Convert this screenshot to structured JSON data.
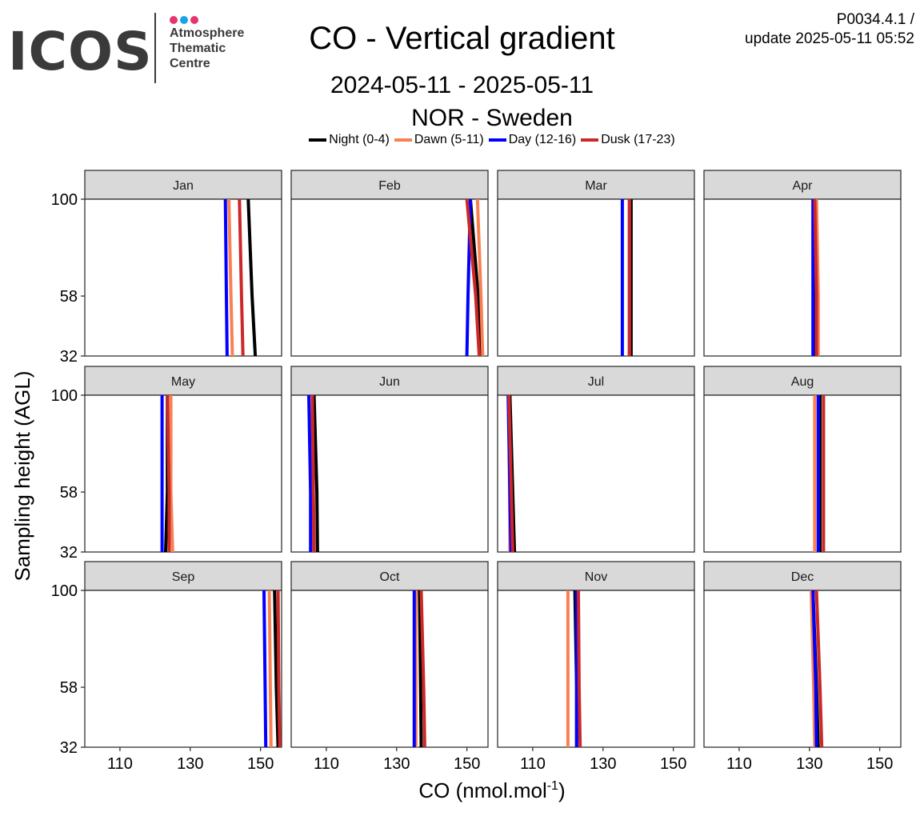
{
  "logo": {
    "wordmark": "ICOS",
    "lines": [
      "Atmosphere",
      "Thematic",
      "Centre"
    ],
    "dot_colors": [
      "#e8336d",
      "#1aa3e8",
      "#e8336d"
    ]
  },
  "header": {
    "title": "CO - Vertical gradient",
    "period": "2024-05-11 - 2025-05-11",
    "station": "NOR - Sweden",
    "version_line1": "P0034.4.1 /",
    "version_line2": "update  2025-05-11 05:52"
  },
  "legend": [
    {
      "label": "Night (0-4)",
      "color": "#000000"
    },
    {
      "label": "Dawn (5-11)",
      "color": "#f98053"
    },
    {
      "label": "Day (12-16)",
      "color": "#0000ff"
    },
    {
      "label": "Dusk (17-23)",
      "color": "#cc2828"
    }
  ],
  "chart_data": {
    "type": "line",
    "title": "CO - Vertical gradient",
    "xlabel": "CO (nmol.mol",
    "xlabel_sup": "-1",
    "xlabel_end": ")",
    "ylabel": "Sampling height (AGL)",
    "xlim": [
      100,
      156
    ],
    "ylim": [
      32,
      100
    ],
    "x_ticks": [
      110,
      130,
      150
    ],
    "y_ticks": [
      32,
      58,
      100
    ],
    "heights": [
      32,
      58,
      100
    ],
    "series_names": [
      "Night (0-4)",
      "Dawn (5-11)",
      "Day (12-16)",
      "Dusk (17-23)"
    ],
    "series_colors": [
      "#000000",
      "#f98053",
      "#0000ff",
      "#cc2828"
    ],
    "panels": [
      {
        "month": "Jan",
        "series": [
          [
            148.5,
            147.6,
            146.5
          ],
          [
            142.0,
            141.6,
            141.0
          ],
          [
            140.5,
            140.3,
            140.0
          ],
          [
            145.0,
            144.6,
            144.0
          ]
        ]
      },
      {
        "month": "Feb",
        "series": [
          [
            154.0,
            153.2,
            151.0
          ],
          [
            154.5,
            154.0,
            153.0
          ],
          [
            150.0,
            150.3,
            151.0
          ],
          [
            153.5,
            152.5,
            150.0
          ]
        ]
      },
      {
        "month": "Mar",
        "series": [
          [
            138.0,
            138.0,
            138.0
          ],
          [
            137.5,
            137.5,
            137.5
          ],
          [
            135.5,
            135.5,
            135.5
          ],
          [
            137.5,
            137.5,
            137.5
          ]
        ]
      },
      {
        "month": "Apr",
        "series": [
          [
            131.5,
            131.5,
            131.5
          ],
          [
            132.5,
            132.5,
            132.0
          ],
          [
            131.0,
            131.0,
            131.0
          ],
          [
            132.0,
            132.0,
            131.5
          ]
        ]
      },
      {
        "month": "May",
        "series": [
          [
            123.0,
            123.5,
            123.5
          ],
          [
            125.0,
            124.5,
            124.5
          ],
          [
            122.0,
            122.0,
            122.0
          ],
          [
            124.0,
            124.0,
            123.5
          ]
        ]
      },
      {
        "month": "Jun",
        "series": [
          [
            107.5,
            107.3,
            106.5
          ],
          [
            106.0,
            106.0,
            106.0
          ],
          [
            105.5,
            105.5,
            105.0
          ],
          [
            106.5,
            106.3,
            106.0
          ]
        ]
      },
      {
        "month": "Jul",
        "series": [
          [
            104.8,
            104.3,
            103.5
          ],
          [
            103.5,
            103.4,
            103.2
          ],
          [
            103.8,
            103.5,
            103.0
          ],
          [
            104.3,
            103.9,
            103.2
          ]
        ]
      },
      {
        "month": "Aug",
        "series": [
          [
            133.0,
            133.0,
            133.0
          ],
          [
            131.5,
            131.5,
            131.5
          ],
          [
            132.5,
            132.5,
            132.5
          ],
          [
            134.0,
            134.0,
            134.0
          ]
        ]
      },
      {
        "month": "Sep",
        "series": [
          [
            155.0,
            154.5,
            154.0
          ],
          [
            153.0,
            152.8,
            152.5
          ],
          [
            151.5,
            151.3,
            151.0
          ],
          [
            155.5,
            155.2,
            155.0
          ]
        ]
      },
      {
        "month": "Oct",
        "series": [
          [
            137.0,
            136.8,
            136.5
          ],
          [
            135.5,
            135.5,
            135.5
          ],
          [
            135.0,
            135.0,
            135.0
          ],
          [
            138.0,
            137.7,
            137.0
          ]
        ]
      },
      {
        "month": "Nov",
        "series": [
          [
            122.5,
            122.5,
            122.0
          ],
          [
            120.0,
            120.0,
            120.0
          ],
          [
            122.5,
            122.5,
            122.5
          ],
          [
            123.5,
            123.2,
            123.0
          ]
        ]
      },
      {
        "month": "Dec",
        "series": [
          [
            132.5,
            132.0,
            131.0
          ],
          [
            131.5,
            131.2,
            130.5
          ],
          [
            132.0,
            131.8,
            131.0
          ],
          [
            133.5,
            133.0,
            132.0
          ]
        ]
      }
    ]
  }
}
